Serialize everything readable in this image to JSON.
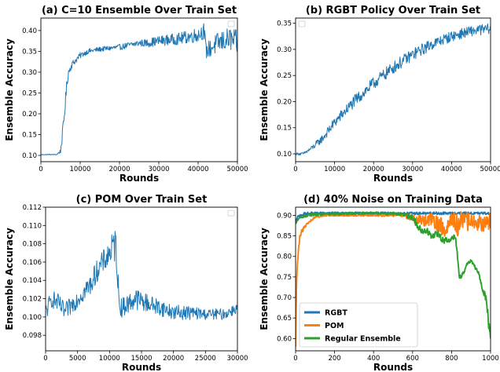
{
  "chart_data": [
    {
      "type": "line",
      "title": "(a) C=10 Ensemble Over Train Set",
      "xlabel": "Rounds",
      "ylabel": "Ensemble Accuracy",
      "xlim": [
        0,
        50000
      ],
      "ylim": [
        0.085,
        0.43
      ],
      "xticks": [
        0,
        10000,
        20000,
        30000,
        40000,
        50000
      ],
      "yticks": [
        0.1,
        0.15,
        0.2,
        0.25,
        0.3,
        0.35,
        0.4
      ],
      "ytick_decimals": 2,
      "legend": "empty box, top-right",
      "series": [
        {
          "color": "#1f77b4",
          "x": [
            0,
            2000,
            4000,
            5000,
            5500,
            6000,
            6500,
            7000,
            8000,
            10000,
            12000,
            15000,
            20000,
            25000,
            27000,
            30000,
            35000,
            40000,
            41500,
            42000,
            45000,
            48000,
            50000
          ],
          "y": [
            0.102,
            0.102,
            0.102,
            0.11,
            0.15,
            0.2,
            0.26,
            0.3,
            0.32,
            0.34,
            0.35,
            0.355,
            0.36,
            0.37,
            0.37,
            0.375,
            0.38,
            0.39,
            0.4,
            0.35,
            0.37,
            0.38,
            0.37
          ],
          "noise": [
            0.001,
            0.001,
            0.001,
            0.005,
            0.015,
            0.015,
            0.015,
            0.01,
            0.008,
            0.007,
            0.006,
            0.006,
            0.007,
            0.008,
            0.01,
            0.012,
            0.014,
            0.018,
            0.02,
            0.02,
            0.025,
            0.028,
            0.03
          ]
        }
      ]
    },
    {
      "type": "line",
      "title": "(b) RGBT Policy Over Train Set",
      "xlabel": "Rounds",
      "ylabel": "Ensemble Accuracy",
      "xlim": [
        0,
        50000
      ],
      "ylim": [
        0.085,
        0.36
      ],
      "xticks": [
        0,
        10000,
        20000,
        30000,
        40000,
        50000
      ],
      "yticks": [
        0.1,
        0.15,
        0.2,
        0.25,
        0.3,
        0.35
      ],
      "ytick_decimals": 2,
      "legend": "empty box, top-left",
      "series": [
        {
          "color": "#1f77b4",
          "x": [
            0,
            2000,
            4000,
            7000,
            10000,
            15000,
            20000,
            25000,
            30000,
            35000,
            40000,
            45000,
            50000
          ],
          "y": [
            0.1,
            0.1,
            0.11,
            0.13,
            0.16,
            0.2,
            0.235,
            0.265,
            0.29,
            0.31,
            0.325,
            0.335,
            0.34
          ],
          "noise": [
            0.002,
            0.003,
            0.005,
            0.008,
            0.01,
            0.012,
            0.012,
            0.012,
            0.012,
            0.011,
            0.01,
            0.01,
            0.01
          ]
        }
      ]
    },
    {
      "type": "line",
      "title": "(c) POM Over Train Set",
      "xlabel": "Rounds",
      "ylabel": "Ensemble Accuracy",
      "xlim": [
        0,
        30000
      ],
      "ylim": [
        0.0963,
        0.112
      ],
      "xticks": [
        0,
        5000,
        10000,
        15000,
        20000,
        25000,
        30000
      ],
      "yticks": [
        0.098,
        0.1,
        0.102,
        0.104,
        0.106,
        0.108,
        0.11,
        0.112
      ],
      "ytick_decimals": 3,
      "legend": "empty box, top-right",
      "series": [
        {
          "color": "#1f77b4",
          "x": [
            0,
            1000,
            2000,
            3000,
            5000,
            7000,
            8000,
            9000,
            10000,
            11000,
            11500,
            12000,
            14000,
            16000,
            18000,
            20000,
            22000,
            25000,
            28000,
            30000
          ],
          "y": [
            0.1005,
            0.102,
            0.1015,
            0.1005,
            0.102,
            0.1035,
            0.105,
            0.106,
            0.107,
            0.108,
            0.1015,
            0.101,
            0.102,
            0.1015,
            0.101,
            0.1005,
            0.1005,
            0.1003,
            0.1003,
            0.101
          ],
          "noise": [
            0.001,
            0.001,
            0.001,
            0.001,
            0.001,
            0.0012,
            0.0012,
            0.0013,
            0.0015,
            0.002,
            0.0012,
            0.0011,
            0.0012,
            0.001,
            0.0009,
            0.0008,
            0.0008,
            0.0006,
            0.0006,
            0.0006
          ]
        }
      ]
    },
    {
      "type": "line",
      "title": "(d) 40% Noise on Training Data",
      "xlabel": "Rounds",
      "ylabel": "Ensemble Accuracy",
      "xlim": [
        0,
        1000
      ],
      "ylim": [
        0.57,
        0.92
      ],
      "xticks": [
        0,
        200,
        400,
        600,
        800,
        1000
      ],
      "yticks": [
        0.6,
        0.65,
        0.7,
        0.75,
        0.8,
        0.85,
        0.9
      ],
      "ytick_decimals": 2,
      "legend": "lower-left",
      "series": [
        {
          "name": "RGBT",
          "color": "#1f77b4",
          "x": [
            0,
            10,
            30,
            60,
            100,
            200,
            400,
            600,
            800,
            1000
          ],
          "y": [
            0.88,
            0.895,
            0.902,
            0.904,
            0.905,
            0.905,
            0.905,
            0.905,
            0.905,
            0.905
          ],
          "noise": [
            0.004,
            0.004,
            0.004,
            0.004,
            0.003,
            0.003,
            0.003,
            0.003,
            0.003,
            0.003
          ]
        },
        {
          "name": "POM",
          "color": "#ff7f0e",
          "x": [
            0,
            5,
            15,
            30,
            60,
            100,
            150,
            200,
            300,
            400,
            500,
            560,
            600,
            650,
            700,
            750,
            800,
            850,
            900,
            950,
            1000
          ],
          "y": [
            0.58,
            0.75,
            0.83,
            0.86,
            0.88,
            0.895,
            0.9,
            0.9,
            0.9,
            0.9,
            0.9,
            0.9,
            0.89,
            0.885,
            0.89,
            0.87,
            0.88,
            0.88,
            0.885,
            0.88,
            0.885
          ],
          "noise": [
            0.0,
            0.02,
            0.01,
            0.005,
            0.003,
            0.002,
            0.002,
            0.002,
            0.002,
            0.002,
            0.003,
            0.003,
            0.012,
            0.015,
            0.015,
            0.025,
            0.035,
            0.03,
            0.02,
            0.02,
            0.02
          ]
        },
        {
          "name": "Regular Ensemble",
          "color": "#2ca02c",
          "x": [
            0,
            10,
            30,
            60,
            100,
            200,
            300,
            400,
            500,
            550,
            600,
            620,
            650,
            680,
            700,
            730,
            750,
            780,
            800,
            820,
            840,
            850,
            860,
            870,
            880,
            900,
            920,
            940,
            960,
            980,
            990,
            1000
          ],
          "y": [
            0.88,
            0.89,
            0.895,
            0.9,
            0.902,
            0.904,
            0.905,
            0.906,
            0.904,
            0.902,
            0.895,
            0.88,
            0.86,
            0.86,
            0.85,
            0.855,
            0.84,
            0.84,
            0.845,
            0.85,
            0.75,
            0.75,
            0.76,
            0.77,
            0.78,
            0.79,
            0.775,
            0.76,
            0.72,
            0.69,
            0.64,
            0.6
          ],
          "noise": [
            0.003,
            0.003,
            0.003,
            0.003,
            0.003,
            0.003,
            0.003,
            0.003,
            0.003,
            0.004,
            0.006,
            0.008,
            0.008,
            0.008,
            0.008,
            0.008,
            0.008,
            0.008,
            0.008,
            0.008,
            0.006,
            0.005,
            0.005,
            0.005,
            0.005,
            0.004,
            0.005,
            0.006,
            0.008,
            0.01,
            0.015,
            0.01
          ]
        }
      ]
    }
  ]
}
